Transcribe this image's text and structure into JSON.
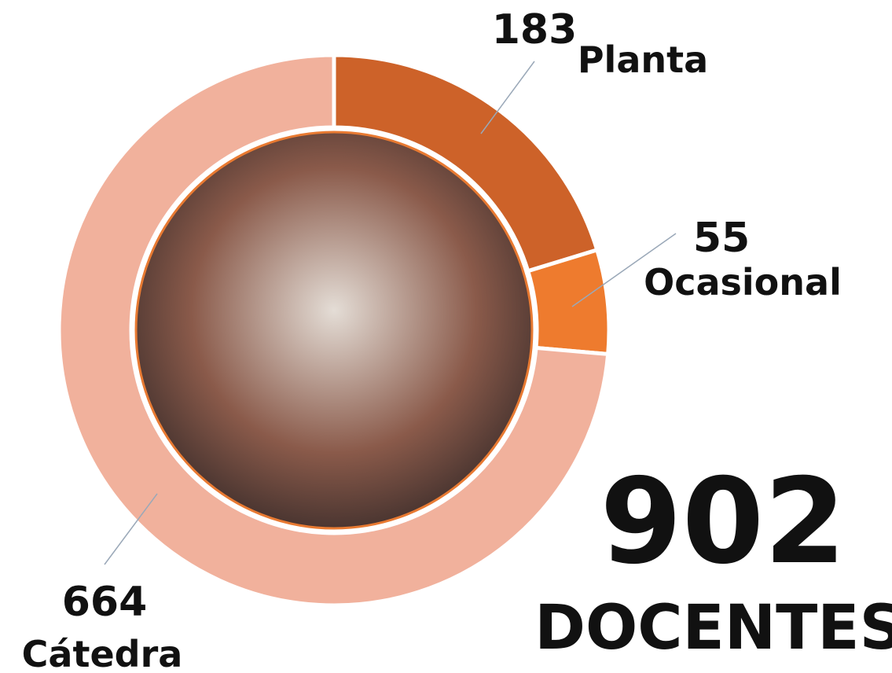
{
  "chart_data": {
    "type": "donut",
    "categories": [
      "Planta",
      "Ocasional",
      "Cátedra"
    ],
    "values": [
      183,
      55,
      664
    ],
    "colors": [
      "#cd6229",
      "#ee7b2e",
      "#f1b19c"
    ],
    "total": 902,
    "total_label": "DOCENTES"
  }
}
